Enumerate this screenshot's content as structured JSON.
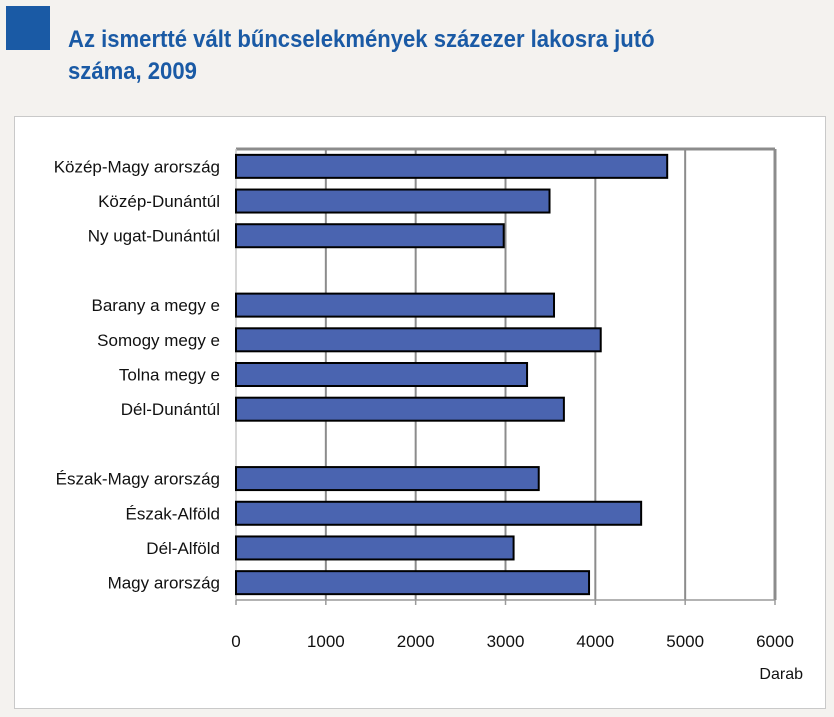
{
  "title": "Az ismertté vált bűncselekmények százezer lakosra jutó száma, 2009",
  "colors": {
    "accent": "#1a5aa5",
    "bar": "#4a64b0",
    "grid": "#8c8c8c"
  },
  "chart_data": {
    "type": "bar",
    "orientation": "horizontal",
    "categories": [
      "Közép-Magy arország",
      "Közép-Dunántúl",
      "Ny ugat-Dunántúl",
      "",
      "Barany a megy e",
      "Somogy  megy e",
      "Tolna megy e",
      "Dél-Dunántúl",
      "",
      "Észak-Magy arország",
      "Észak-Alföld",
      "Dél-Alföld",
      "Magy arország"
    ],
    "values": [
      4800,
      3490,
      2980,
      null,
      3540,
      4060,
      3240,
      3650,
      null,
      3370,
      4510,
      3090,
      3930
    ],
    "xlim": [
      0,
      6000
    ],
    "xticks": [
      "0",
      "1000",
      "2000",
      "3000",
      "4000",
      "5000",
      "6000"
    ],
    "xlabel": "Darab",
    "grid": true
  }
}
